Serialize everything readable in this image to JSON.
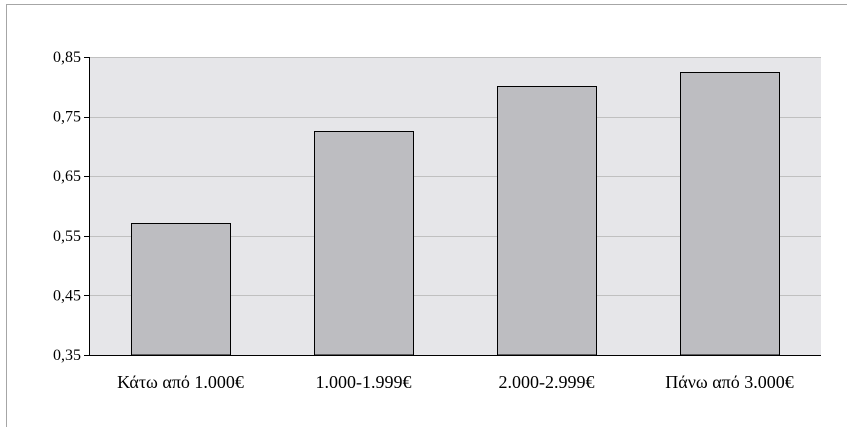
{
  "chart_data": {
    "type": "bar",
    "categories": [
      "Κάτω από 1.000€",
      "1.000-1.999€",
      "2.000-2.999€",
      "Πάνω από 3.000€"
    ],
    "values": [
      0.572,
      0.726,
      0.801,
      0.824
    ],
    "title": "",
    "xlabel": "",
    "ylabel": "",
    "ylim": [
      0.35,
      0.85
    ],
    "yticks": [
      0.35,
      0.45,
      0.55,
      0.65,
      0.75,
      0.85
    ],
    "ytick_labels": [
      "0,35",
      "0,45",
      "0,55",
      "0,65",
      "0,75",
      "0,85"
    ],
    "grid": true,
    "legend": "none",
    "colors": {
      "plot_background": "#e6e6e9",
      "bar_fill": "#bdbdc1",
      "bar_stroke": "#000000",
      "gridline": "#c0c0c0",
      "axis": "#000000"
    }
  }
}
